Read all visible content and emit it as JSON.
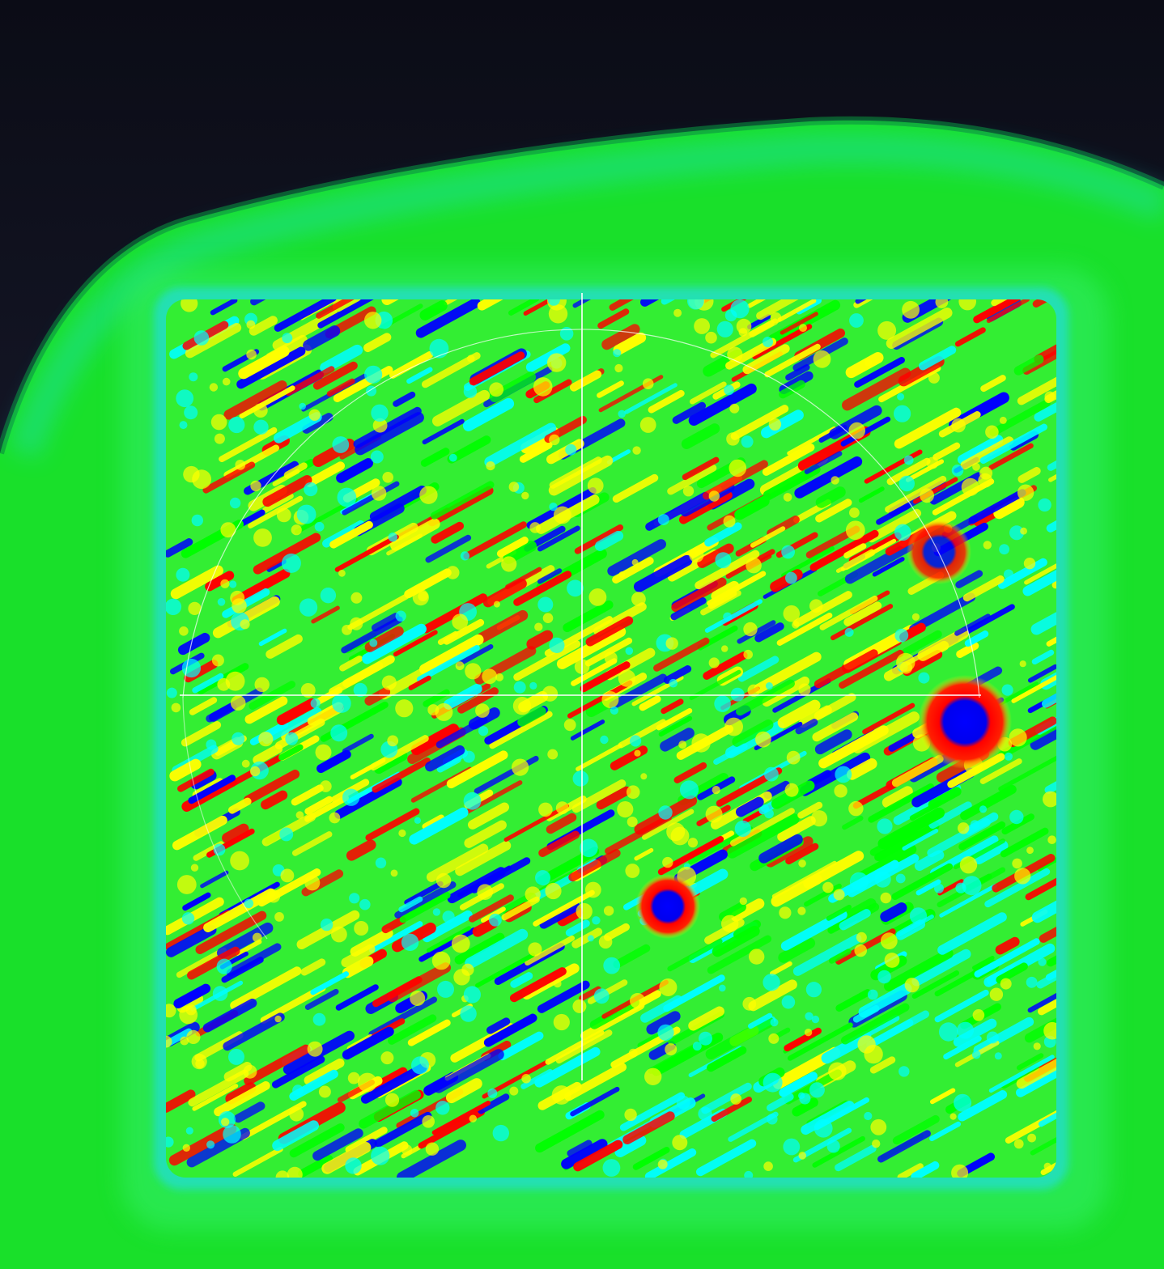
{
  "viewer": {
    "background_top": "#0b0c16",
    "background_bottom": "#23253d",
    "colormap": [
      "#0000ff",
      "#00ffff",
      "#00ff00",
      "#ffff00",
      "#ff0000"
    ],
    "surface_base_color": "#22ee22",
    "crosshair_color": "#ffffff",
    "crosshair": true,
    "reference_circle": true
  }
}
